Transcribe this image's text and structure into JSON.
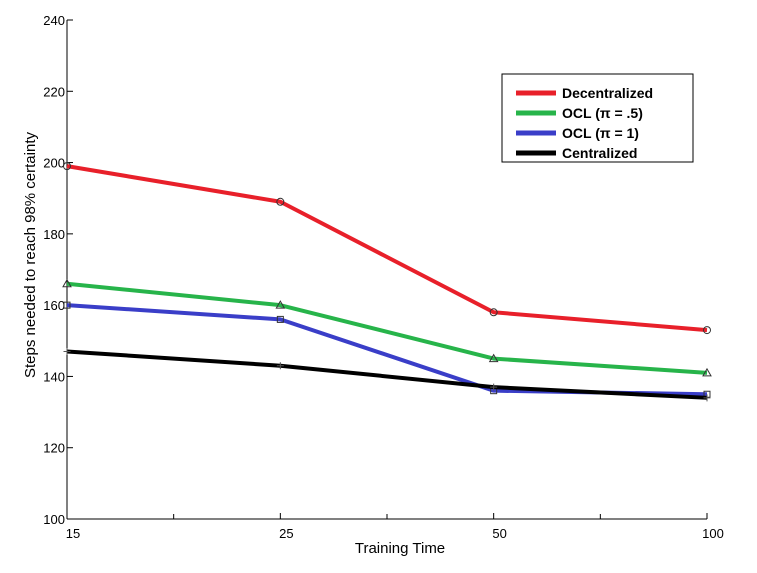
{
  "chart_data": {
    "type": "line",
    "title": "",
    "xlabel": "Training Time",
    "ylabel": "Steps needed to reach 98% certainty",
    "x": [
      "15",
      "25",
      "50",
      "100"
    ],
    "ylim": [
      100,
      240
    ],
    "yticks": [
      "100",
      "120",
      "140",
      "160",
      "180",
      "200",
      "220",
      "240"
    ],
    "grid": false,
    "legend_position": "top-right",
    "series": [
      {
        "name": "Decentralized",
        "color": "#e8202a",
        "marker": "circle",
        "values": [
          199,
          189,
          158,
          153
        ]
      },
      {
        "name": "OCL (π = .5)",
        "color": "#27b44a",
        "marker": "triangle",
        "values": [
          166,
          160,
          145,
          141
        ]
      },
      {
        "name": "OCL (π = 1)",
        "color": "#3a3ec8",
        "marker": "square",
        "values": [
          160,
          156,
          136,
          135
        ]
      },
      {
        "name": "Centralized",
        "color": "#000000",
        "marker": "plus",
        "values": [
          147,
          143,
          137,
          134
        ]
      }
    ]
  }
}
